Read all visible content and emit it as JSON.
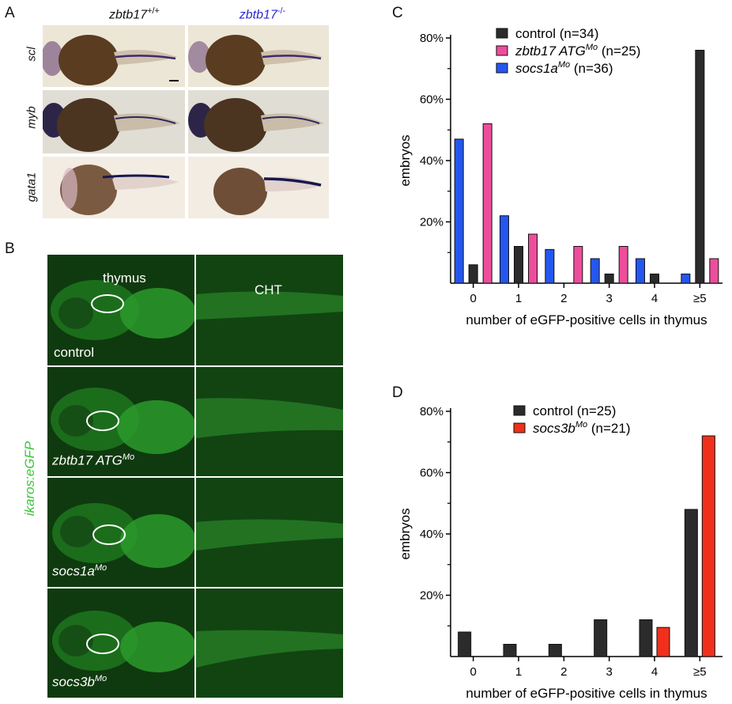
{
  "panels": {
    "a": {
      "letter": "A",
      "col1_gene": "zbtb17",
      "col1_sup": "+/+",
      "col2_gene": "zbtb17",
      "col2_sup": "-/-",
      "col2_color": "#2a2ad0",
      "rows": [
        "scl",
        "myb",
        "gata1"
      ]
    },
    "b": {
      "letter": "B",
      "side_label": "ikaros:eGFP",
      "thymus_label": "thymus",
      "cht_label": "CHT",
      "rows": [
        {
          "name": "control",
          "sup": ""
        },
        {
          "name": "zbtb17 ATG",
          "sup": "Mo"
        },
        {
          "name": "socs1a",
          "sup": "Mo"
        },
        {
          "name": "socs3b",
          "sup": "Mo"
        }
      ]
    },
    "c": {
      "letter": "C"
    },
    "d": {
      "letter": "D"
    }
  },
  "chart_data": [
    {
      "type": "bar",
      "panel": "C",
      "ylabel": "embryos",
      "xlabel": "number of eGFP-positive cells in thymus",
      "categories": [
        "0",
        "1",
        "2",
        "3",
        "4",
        "≥5"
      ],
      "ylim": [
        0,
        80
      ],
      "yticks": [
        "20%",
        "40%",
        "60%",
        "80%"
      ],
      "legend_position": "top-center",
      "series": [
        {
          "name": "control",
          "legend_suffix": " (n=34)",
          "name_italic": false,
          "sup": "",
          "color": "#2b2b2b",
          "values": [
            6,
            12,
            0,
            3,
            3,
            76
          ]
        },
        {
          "name": "zbtb17 ATG",
          "legend_suffix": " (n=25)",
          "name_italic": true,
          "sup": "Mo",
          "color": "#ee4d9b",
          "values": [
            52,
            16,
            12,
            12,
            0,
            8
          ]
        },
        {
          "name": "socs1a",
          "legend_suffix": " (n=36)",
          "name_italic": true,
          "sup": "Mo",
          "color": "#2457f0",
          "values": [
            47,
            22,
            11,
            8,
            8,
            3
          ]
        }
      ],
      "bar_order": [
        2,
        0,
        1
      ]
    },
    {
      "type": "bar",
      "panel": "D",
      "ylabel": "embryos",
      "xlabel": "number of eGFP-positive cells in thymus",
      "categories": [
        "0",
        "1",
        "2",
        "3",
        "4",
        "≥5"
      ],
      "ylim": [
        0,
        80
      ],
      "yticks": [
        "20%",
        "40%",
        "60%",
        "80%"
      ],
      "legend_position": "top-center",
      "series": [
        {
          "name": "control",
          "legend_suffix": " (n=25)",
          "name_italic": false,
          "sup": "",
          "color": "#2b2b2b",
          "values": [
            8,
            4,
            4,
            12,
            12,
            48
          ]
        },
        {
          "name": "socs3b",
          "legend_suffix": " (n=21)",
          "name_italic": true,
          "sup": "Mo",
          "color": "#f0301c",
          "values": [
            0,
            0,
            0,
            0,
            9.5,
            72
          ]
        }
      ],
      "bar_order": [
        0,
        1
      ]
    }
  ]
}
